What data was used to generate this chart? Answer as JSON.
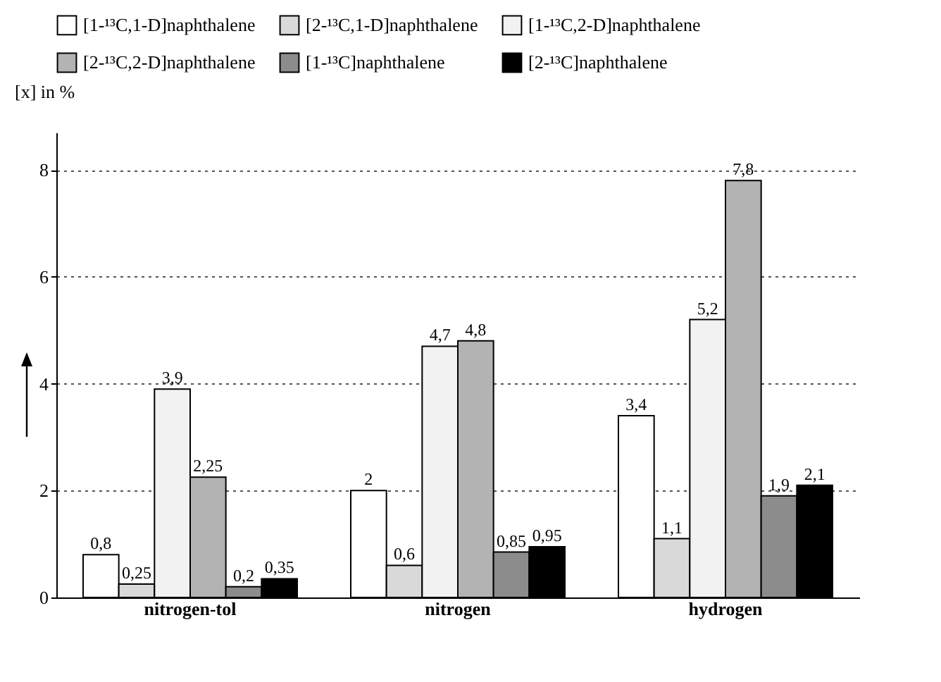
{
  "chart_data": {
    "type": "bar",
    "ylabel": "[x] in %",
    "categories": [
      "nitrogen-tol",
      "nitrogen",
      "hydrogen"
    ],
    "series": [
      {
        "name": "[1-¹³C,1-D]naphthalene",
        "color": "#ffffff",
        "values": [
          0.8,
          2,
          3.4
        ],
        "value_labels": [
          "0,8",
          "2",
          "3,4"
        ]
      },
      {
        "name": "[2-¹³C,1-D]naphthalene",
        "color": "#d9d9d9",
        "values": [
          0.25,
          0.6,
          1.1
        ],
        "value_labels": [
          "0,25",
          "0,6",
          "1,1"
        ]
      },
      {
        "name": "[1-¹³C,2-D]naphthalene",
        "color": "#f2f2f2",
        "values": [
          3.9,
          4.7,
          5.2
        ],
        "value_labels": [
          "3,9",
          "4,7",
          "5,2"
        ]
      },
      {
        "name": "[2-¹³C,2-D]naphthalene",
        "color": "#b3b3b3",
        "values": [
          2.25,
          4.8,
          7.8
        ],
        "value_labels": [
          "2,25",
          "4,8",
          "7,8"
        ]
      },
      {
        "name": "[1-¹³C]naphthalene",
        "color": "#8c8c8c",
        "values": [
          0.2,
          0.85,
          1.9
        ],
        "value_labels": [
          "0,2",
          "0,85",
          "1,9"
        ]
      },
      {
        "name": "[2-¹³C]naphthalene",
        "color": "#000000",
        "values": [
          0.35,
          0.95,
          2.1
        ],
        "value_labels": [
          "0,35",
          "0,95",
          "2,1"
        ]
      }
    ],
    "ylim": [
      0,
      8.7
    ],
    "yticks": [
      0,
      2,
      4,
      6,
      8
    ],
    "grid": "y",
    "legend": "top"
  }
}
